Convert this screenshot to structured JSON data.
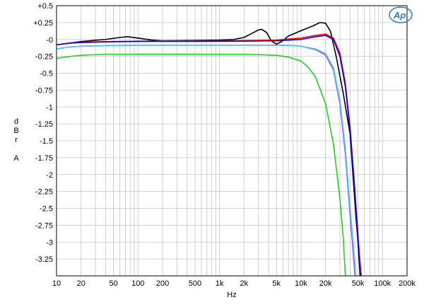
{
  "chart_data": {
    "type": "line",
    "title": "",
    "xlabel": "Hz",
    "ylabel_lines": [
      "d",
      "B",
      "r",
      "",
      "A"
    ],
    "x_scale": "log",
    "xlim": [
      10,
      200000
    ],
    "ylim": [
      -3.5,
      0.5
    ],
    "x_ticks": [
      {
        "value": 10,
        "label": "10"
      },
      {
        "value": 20,
        "label": "20"
      },
      {
        "value": 50,
        "label": "50"
      },
      {
        "value": 100,
        "label": "100"
      },
      {
        "value": 200,
        "label": "200"
      },
      {
        "value": 500,
        "label": "500"
      },
      {
        "value": 1000,
        "label": "1k"
      },
      {
        "value": 2000,
        "label": "2k"
      },
      {
        "value": 5000,
        "label": "5k"
      },
      {
        "value": 10000,
        "label": "10k"
      },
      {
        "value": 20000,
        "label": "20k"
      },
      {
        "value": 50000,
        "label": "50k"
      },
      {
        "value": 100000,
        "label": "100k"
      },
      {
        "value": 200000,
        "label": "200k"
      }
    ],
    "y_ticks": [
      {
        "value": 0.5,
        "label": "+0.5"
      },
      {
        "value": 0.25,
        "label": "+0.25"
      },
      {
        "value": 0,
        "label": "-0"
      },
      {
        "value": -0.25,
        "label": "-0.25"
      },
      {
        "value": -0.5,
        "label": "-0.5"
      },
      {
        "value": -0.75,
        "label": "-0.75"
      },
      {
        "value": -1,
        "label": "-1"
      },
      {
        "value": -1.25,
        "label": "-1.25"
      },
      {
        "value": -1.5,
        "label": "-1.5"
      },
      {
        "value": -1.75,
        "label": "-1.75"
      },
      {
        "value": -2,
        "label": "-2"
      },
      {
        "value": -2.25,
        "label": "-2.25"
      },
      {
        "value": -2.5,
        "label": "-2.5"
      },
      {
        "value": -2.75,
        "label": "-2.75"
      },
      {
        "value": -3,
        "label": "-3"
      },
      {
        "value": -3.25,
        "label": "-3.25"
      }
    ],
    "grid": true,
    "logo_text": "Ap",
    "series": [
      {
        "color": "#1fd21f",
        "points": [
          [
            10,
            -0.28
          ],
          [
            15,
            -0.25
          ],
          [
            20,
            -0.235
          ],
          [
            30,
            -0.225
          ],
          [
            50,
            -0.22
          ],
          [
            100,
            -0.218
          ],
          [
            200,
            -0.218
          ],
          [
            500,
            -0.218
          ],
          [
            1000,
            -0.22
          ],
          [
            2000,
            -0.22
          ],
          [
            3000,
            -0.225
          ],
          [
            5000,
            -0.235
          ],
          [
            7000,
            -0.26
          ],
          [
            10000,
            -0.32
          ],
          [
            12000,
            -0.4
          ],
          [
            15000,
            -0.55
          ],
          [
            20000,
            -0.95
          ],
          [
            25000,
            -1.55
          ],
          [
            30000,
            -2.35
          ],
          [
            33000,
            -2.95
          ],
          [
            35000,
            -3.5
          ]
        ]
      },
      {
        "color": "#b040ff",
        "points": [
          [
            10,
            -0.14
          ],
          [
            15,
            -0.11
          ],
          [
            20,
            -0.1
          ],
          [
            50,
            -0.09
          ],
          [
            100,
            -0.085
          ],
          [
            500,
            -0.085
          ],
          [
            1000,
            -0.085
          ],
          [
            2000,
            -0.085
          ],
          [
            5000,
            -0.085
          ],
          [
            8000,
            -0.09
          ],
          [
            10000,
            -0.1
          ],
          [
            15000,
            -0.15
          ],
          [
            20000,
            -0.23
          ],
          [
            25000,
            -0.45
          ],
          [
            30000,
            -0.95
          ],
          [
            35000,
            -1.7
          ],
          [
            40000,
            -2.6
          ],
          [
            44000,
            -3.2
          ],
          [
            46000,
            -3.5
          ]
        ]
      },
      {
        "color": "#41c8f5",
        "points": [
          [
            10,
            -0.14
          ],
          [
            15,
            -0.11
          ],
          [
            20,
            -0.1
          ],
          [
            50,
            -0.09
          ],
          [
            100,
            -0.085
          ],
          [
            500,
            -0.085
          ],
          [
            1000,
            -0.085
          ],
          [
            2000,
            -0.085
          ],
          [
            5000,
            -0.085
          ],
          [
            8000,
            -0.09
          ],
          [
            10000,
            -0.1
          ],
          [
            15000,
            -0.14
          ],
          [
            20000,
            -0.21
          ],
          [
            25000,
            -0.42
          ],
          [
            30000,
            -0.9
          ],
          [
            35000,
            -1.62
          ],
          [
            40000,
            -2.5
          ],
          [
            45000,
            -3.2
          ],
          [
            47000,
            -3.5
          ]
        ]
      },
      {
        "color": "#000000",
        "points": [
          [
            10,
            -0.08
          ],
          [
            20,
            -0.03
          ],
          [
            40,
            0.0
          ],
          [
            60,
            0.03
          ],
          [
            75,
            0.04
          ],
          [
            100,
            0.02
          ],
          [
            150,
            -0.01
          ],
          [
            200,
            -0.02
          ],
          [
            500,
            -0.015
          ],
          [
            1000,
            -0.01
          ],
          [
            1500,
            0.0
          ],
          [
            2000,
            0.03
          ],
          [
            2500,
            0.09
          ],
          [
            3000,
            0.14
          ],
          [
            3300,
            0.15
          ],
          [
            3800,
            0.1
          ],
          [
            4300,
            -0.02
          ],
          [
            5000,
            -0.07
          ],
          [
            5800,
            -0.03
          ],
          [
            7000,
            0.05
          ],
          [
            10000,
            0.13
          ],
          [
            14000,
            0.2
          ],
          [
            17000,
            0.25
          ],
          [
            20000,
            0.24
          ],
          [
            23000,
            0.12
          ],
          [
            27000,
            -0.25
          ],
          [
            33000,
            -0.8
          ],
          [
            40000,
            -1.4
          ],
          [
            47000,
            -2.6
          ],
          [
            50000,
            -3.0
          ],
          [
            53000,
            -3.5
          ]
        ]
      },
      {
        "color": "#ff0000",
        "points": [
          [
            10,
            -0.08
          ],
          [
            15,
            -0.05
          ],
          [
            20,
            -0.04
          ],
          [
            50,
            -0.03
          ],
          [
            100,
            -0.025
          ],
          [
            200,
            -0.022
          ],
          [
            500,
            -0.02
          ],
          [
            1000,
            -0.02
          ],
          [
            2000,
            -0.018
          ],
          [
            5000,
            -0.01
          ],
          [
            10000,
            0.02
          ],
          [
            15000,
            0.06
          ],
          [
            20000,
            0.08
          ],
          [
            25000,
            0.02
          ],
          [
            30000,
            -0.2
          ],
          [
            35000,
            -0.65
          ],
          [
            40000,
            -1.3
          ],
          [
            45000,
            -2.1
          ],
          [
            50000,
            -2.9
          ],
          [
            53000,
            -3.3
          ],
          [
            55000,
            -3.5
          ]
        ]
      },
      {
        "color": "#0000ff",
        "points": [
          [
            10,
            -0.08
          ],
          [
            15,
            -0.055
          ],
          [
            20,
            -0.045
          ],
          [
            50,
            -0.035
          ],
          [
            100,
            -0.03
          ],
          [
            200,
            -0.028
          ],
          [
            500,
            -0.028
          ],
          [
            1000,
            -0.027
          ],
          [
            2000,
            -0.025
          ],
          [
            5000,
            -0.02
          ],
          [
            10000,
            0.0
          ],
          [
            15000,
            0.04
          ],
          [
            20000,
            0.06
          ],
          [
            25000,
            0.0
          ],
          [
            30000,
            -0.25
          ],
          [
            35000,
            -0.7
          ],
          [
            40000,
            -1.35
          ],
          [
            45000,
            -2.15
          ],
          [
            50000,
            -2.95
          ],
          [
            53500,
            -3.5
          ]
        ]
      }
    ]
  }
}
